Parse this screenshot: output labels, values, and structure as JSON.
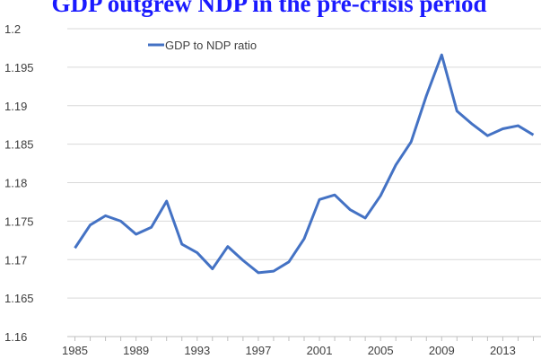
{
  "chart_data": {
    "type": "line",
    "title": "GDP outgrew NDP in the pre-crisis period",
    "x": [
      1985,
      1986,
      1987,
      1988,
      1989,
      1990,
      1991,
      1992,
      1993,
      1994,
      1995,
      1996,
      1997,
      1998,
      1999,
      2000,
      2001,
      2002,
      2003,
      2004,
      2005,
      2006,
      2007,
      2008,
      2009,
      2010,
      2011,
      2012,
      2013,
      2014,
      2015
    ],
    "series": [
      {
        "name": "GDP to NDP ratio",
        "color": "#4472c4",
        "values": [
          1.1715,
          1.1745,
          1.1757,
          1.175,
          1.1733,
          1.1742,
          1.1776,
          1.172,
          1.1709,
          1.1688,
          1.1717,
          1.1699,
          1.1683,
          1.1685,
          1.1697,
          1.1727,
          1.1778,
          1.1784,
          1.1765,
          1.1754,
          1.1783,
          1.1823,
          1.1853,
          1.1913,
          1.1966,
          1.1893,
          1.1876,
          1.1861,
          1.187,
          1.1874,
          1.1862
        ]
      }
    ],
    "xlim": [
      1984.5,
      2015.5
    ],
    "xticks": [
      1985,
      1989,
      1993,
      1997,
      2001,
      2005,
      2009,
      2013
    ],
    "ylim": [
      1.16,
      1.2
    ],
    "yticks": [
      1.16,
      1.165,
      1.17,
      1.175,
      1.18,
      1.185,
      1.19,
      1.195,
      1.2
    ],
    "grid": true,
    "legend": "top-left"
  }
}
